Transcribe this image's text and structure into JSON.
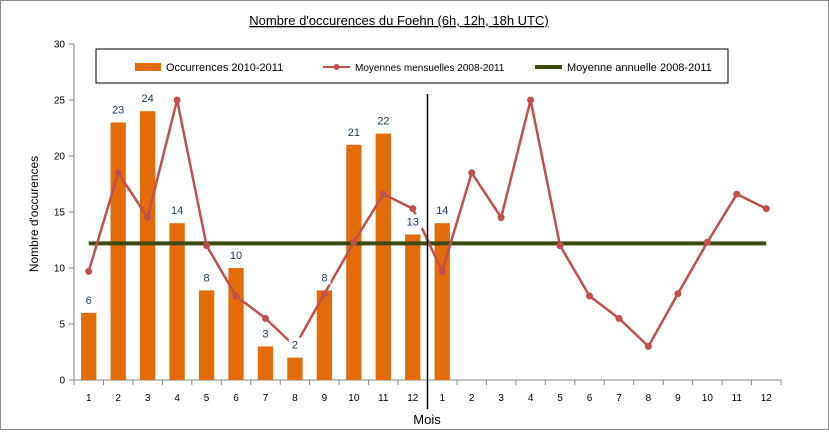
{
  "chart_data": {
    "type": "bar",
    "title": "Nombre d'occurences du Foehn (6h, 12h, 18h UTC)",
    "xlabel": "Mois",
    "ylabel": "Nombre d'occurences",
    "ylim": [
      0,
      30
    ],
    "yticks": [
      0,
      5,
      10,
      15,
      20,
      25,
      30
    ],
    "categories": [
      "1",
      "2",
      "3",
      "4",
      "5",
      "6",
      "7",
      "8",
      "9",
      "10",
      "11",
      "12",
      "1",
      "2",
      "3",
      "4",
      "5",
      "6",
      "7",
      "8",
      "9",
      "10",
      "11",
      "12"
    ],
    "legend_position": "top",
    "grid": false,
    "divider_after_category_index": 11,
    "series": [
      {
        "name": "Occurrences 2010-2011",
        "type": "bar",
        "color": "#e36c0a",
        "values": [
          6,
          23,
          24,
          14,
          8,
          10,
          3,
          2,
          8,
          21,
          22,
          13,
          14,
          null,
          null,
          null,
          null,
          null,
          null,
          null,
          null,
          null,
          null,
          null
        ],
        "data_labels": [
          "6",
          "23",
          "24",
          "14",
          "8",
          "10",
          "3",
          "2",
          "8",
          "21",
          "22",
          "13",
          "14"
        ]
      },
      {
        "name": "Moyennes mensuelles 2008-2011",
        "type": "line",
        "color": "#c0504d",
        "values": [
          9.7,
          18.5,
          14.5,
          25,
          12,
          7.5,
          5.5,
          3,
          7.7,
          12.3,
          16.6,
          15.3,
          9.7,
          18.5,
          14.5,
          25,
          12,
          7.5,
          5.5,
          3,
          7.7,
          12.3,
          16.6,
          15.3
        ]
      },
      {
        "name": "Moyenne annuelle 2008-2011",
        "type": "line",
        "color": "#3b4a12",
        "values": [
          12.2,
          12.2,
          12.2,
          12.2,
          12.2,
          12.2,
          12.2,
          12.2,
          12.2,
          12.2,
          12.2,
          12.2,
          12.2,
          12.2,
          12.2,
          12.2,
          12.2,
          12.2,
          12.2,
          12.2,
          12.2,
          12.2,
          12.2,
          12.2
        ]
      }
    ]
  }
}
